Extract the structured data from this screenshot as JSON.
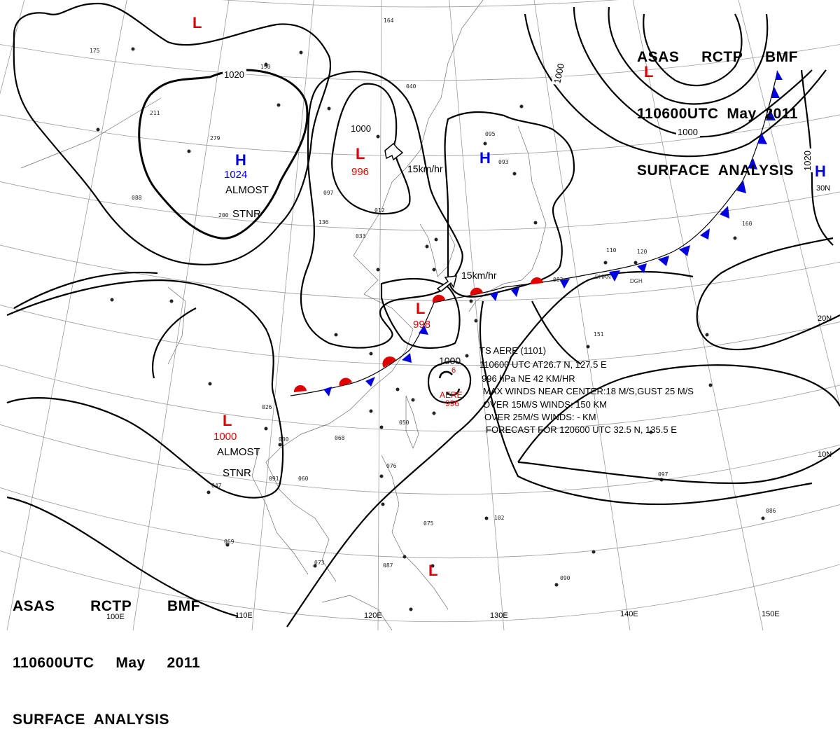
{
  "header": {
    "line1": [
      "ASAS",
      "RCTP",
      "BMF"
    ],
    "line2": [
      "110600UTC",
      "May",
      "2011"
    ],
    "line3": "SURFACE  ANALYSIS"
  },
  "isobars": {
    "1024_h": "1024",
    "1020_left": "1020",
    "1000_center": "1000",
    "996_l": "996",
    "1000_ne": "1000",
    "1000_nw": "1000",
    "1020_e": "1020",
    "998_l": "998",
    "1000_sw": "1000",
    "1000_aere": "1000",
    "six": "6"
  },
  "systems": {
    "H_label": "H",
    "L_label": "L",
    "almost": "ALMOST",
    "stnr": "STNR",
    "aere": "AERE",
    "aere_p": "996"
  },
  "motion": {
    "m1": "15km/hr",
    "m2": "15km/hr"
  },
  "typhoon_text": [
    "TS  AERE  (1101)",
    "110600 UTC  AT26.7 N, 127.5 E",
    "996 hPa  NE  42 KM/HR",
    "MAX WINDS NEAR CENTER:18 M/S,GUST 25 M/S",
    "OVER 15M/S WINDS: 150 KM",
    "OVER 25M/S WINDS: - KM",
    "FORECAST FOR 120600 UTC 32.5 N, 135.5 E"
  ],
  "lat_labels": [
    "30N",
    "20N",
    "10N"
  ],
  "lon_labels": [
    "100E",
    "110E",
    "120E",
    "130E",
    "140E",
    "150E"
  ],
  "front_labels": [
    "DHAN",
    "DGH"
  ],
  "station_numbers": [
    "175",
    "164",
    "190",
    "040",
    "033",
    "279",
    "211",
    "200",
    "136",
    "097",
    "088",
    "012",
    "083",
    "050",
    "102",
    "160",
    "110",
    "120",
    "095",
    "093",
    "151",
    "026",
    "030",
    "047",
    "060",
    "069",
    "073",
    "076",
    "075",
    "087",
    "091",
    "068",
    "090",
    "097",
    "086"
  ],
  "colors": {
    "low": "#e00000",
    "high": "#0000e0",
    "isobar": "#000000",
    "warm_front": "#e00000",
    "cold_front": "#0000e0"
  }
}
